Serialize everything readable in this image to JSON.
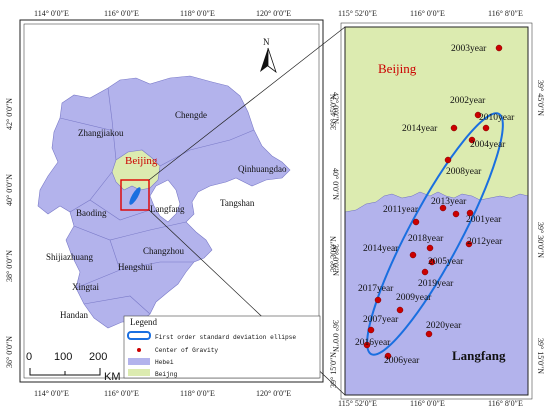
{
  "left_map": {
    "top_ticks": [
      "114° 0′0″E",
      "116° 0′0″E",
      "118° 0′0″E",
      "120° 0′0″E"
    ],
    "bottom_ticks": [
      "114° 0′0″E",
      "116° 0′0″E",
      "118° 0′0″E",
      "120° 0′0″E"
    ],
    "left_ticks": [
      "42° 0′0″N",
      "40° 0′0″N",
      "38° 0′0″N",
      "36° 0′0″N"
    ],
    "right_ticks": [
      "42° 0′0″N",
      "40° 0′0″N",
      "38° 0′0″N",
      "36° 0′0″N"
    ],
    "cities": [
      "Chengde",
      "Zhangjiakou",
      "Beijing",
      "Qinhuangdao",
      "Tangshan",
      "Baoding",
      "Langfang",
      "Changzhou",
      "Shijiazhuang",
      "Hengshui",
      "Xingtai",
      "Handan"
    ],
    "north_label": "N",
    "scale": {
      "labels": [
        "0",
        "100",
        "200"
      ],
      "unit": "KM"
    },
    "legend": {
      "title": "Legend",
      "items": [
        "First order standard deviation ellipse",
        "Center of Gravity",
        "Hebei",
        "Beijng"
      ]
    }
  },
  "right_map": {
    "top_ticks": [
      "115° 52′0″E",
      "116° 0′0″E",
      "116° 8′0″E"
    ],
    "bottom_ticks": [
      "115° 52′0″E",
      "116° 0′0″E",
      "116° 8′0″E"
    ],
    "left_ticks": [
      "39° 45′0″N",
      "39° 30′0″N",
      "39° 15′0″N"
    ],
    "right_ticks": [
      "39° 45′0″N",
      "39° 30′0″N",
      "39° 15′0″N"
    ],
    "region_labels": [
      "Beijing",
      "Langfang"
    ],
    "centers": [
      {
        "year": "2003year"
      },
      {
        "year": "2002year"
      },
      {
        "year": "2010year"
      },
      {
        "year": "2014year"
      },
      {
        "year": "2004year"
      },
      {
        "year": "2008year"
      },
      {
        "year": "2013year"
      },
      {
        "year": "2011year"
      },
      {
        "year": "2001year"
      },
      {
        "year": "2018year"
      },
      {
        "year": "2012year"
      },
      {
        "year": "2014year"
      },
      {
        "year": "2005year"
      },
      {
        "year": "2019year"
      },
      {
        "year": "2017year"
      },
      {
        "year": "2009year"
      },
      {
        "year": "2007year"
      },
      {
        "year": "2020year"
      },
      {
        "year": "2016year"
      },
      {
        "year": "2006year"
      }
    ]
  },
  "colors": {
    "hebei": "#b3b3ec",
    "beijing": "#dcebb0",
    "point": "#cc0000",
    "ellipse": "#1a6fe0",
    "beijing_label": "#cc0000",
    "highlight_box": "#e00000"
  }
}
